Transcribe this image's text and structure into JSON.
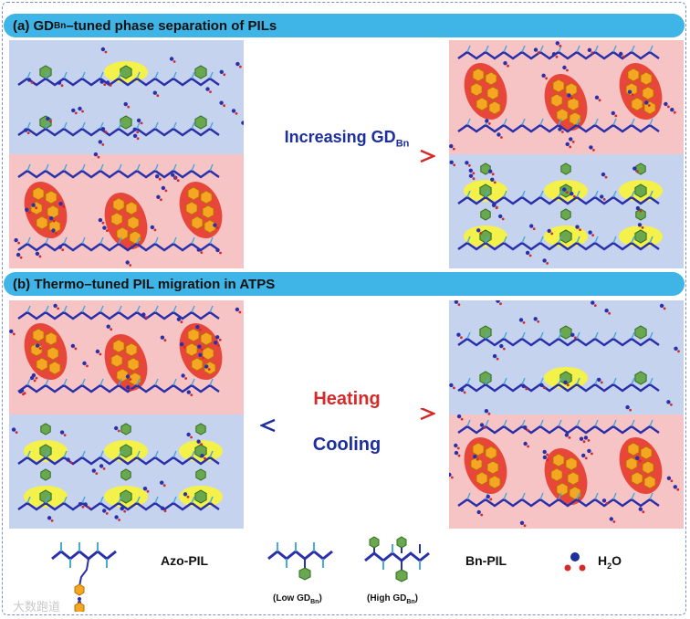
{
  "section_a": {
    "label_prefix": "(a) GD",
    "label_sub": "Bn",
    "label_suffix": "–tuned phase separation of PILs",
    "arrow_text": "Increasing GD",
    "arrow_sub": "Bn"
  },
  "section_b": {
    "label": "(b) Thermo–tuned PIL migration in ATPS",
    "forward_text": "Heating",
    "backward_text": "Cooling"
  },
  "legend": {
    "azo_pil": "Azo-PIL",
    "bn_pil": "Bn-PIL",
    "water_main": "H",
    "water_sub": "2",
    "water_tail": "O",
    "low_gd": "(Low GD",
    "high_gd": "(High GD",
    "gd_sub": "Bn",
    "close_paren": ")"
  },
  "watermark": "大数跑道",
  "colors": {
    "header_bg": "#3fb4e6",
    "pink_phase": "#f6c4c4",
    "blue_phase": "#c6d3ee",
    "heating": "#d42a2a",
    "cooling": "#1d2f9e",
    "chain": "#2a2faa",
    "side_chain": "#4aa9dc",
    "benzene": "#6aa84f",
    "azo_ring": "#f5a623",
    "ellipse_red": "#e8463a",
    "ellipse_yellow": "#f4f14a"
  }
}
